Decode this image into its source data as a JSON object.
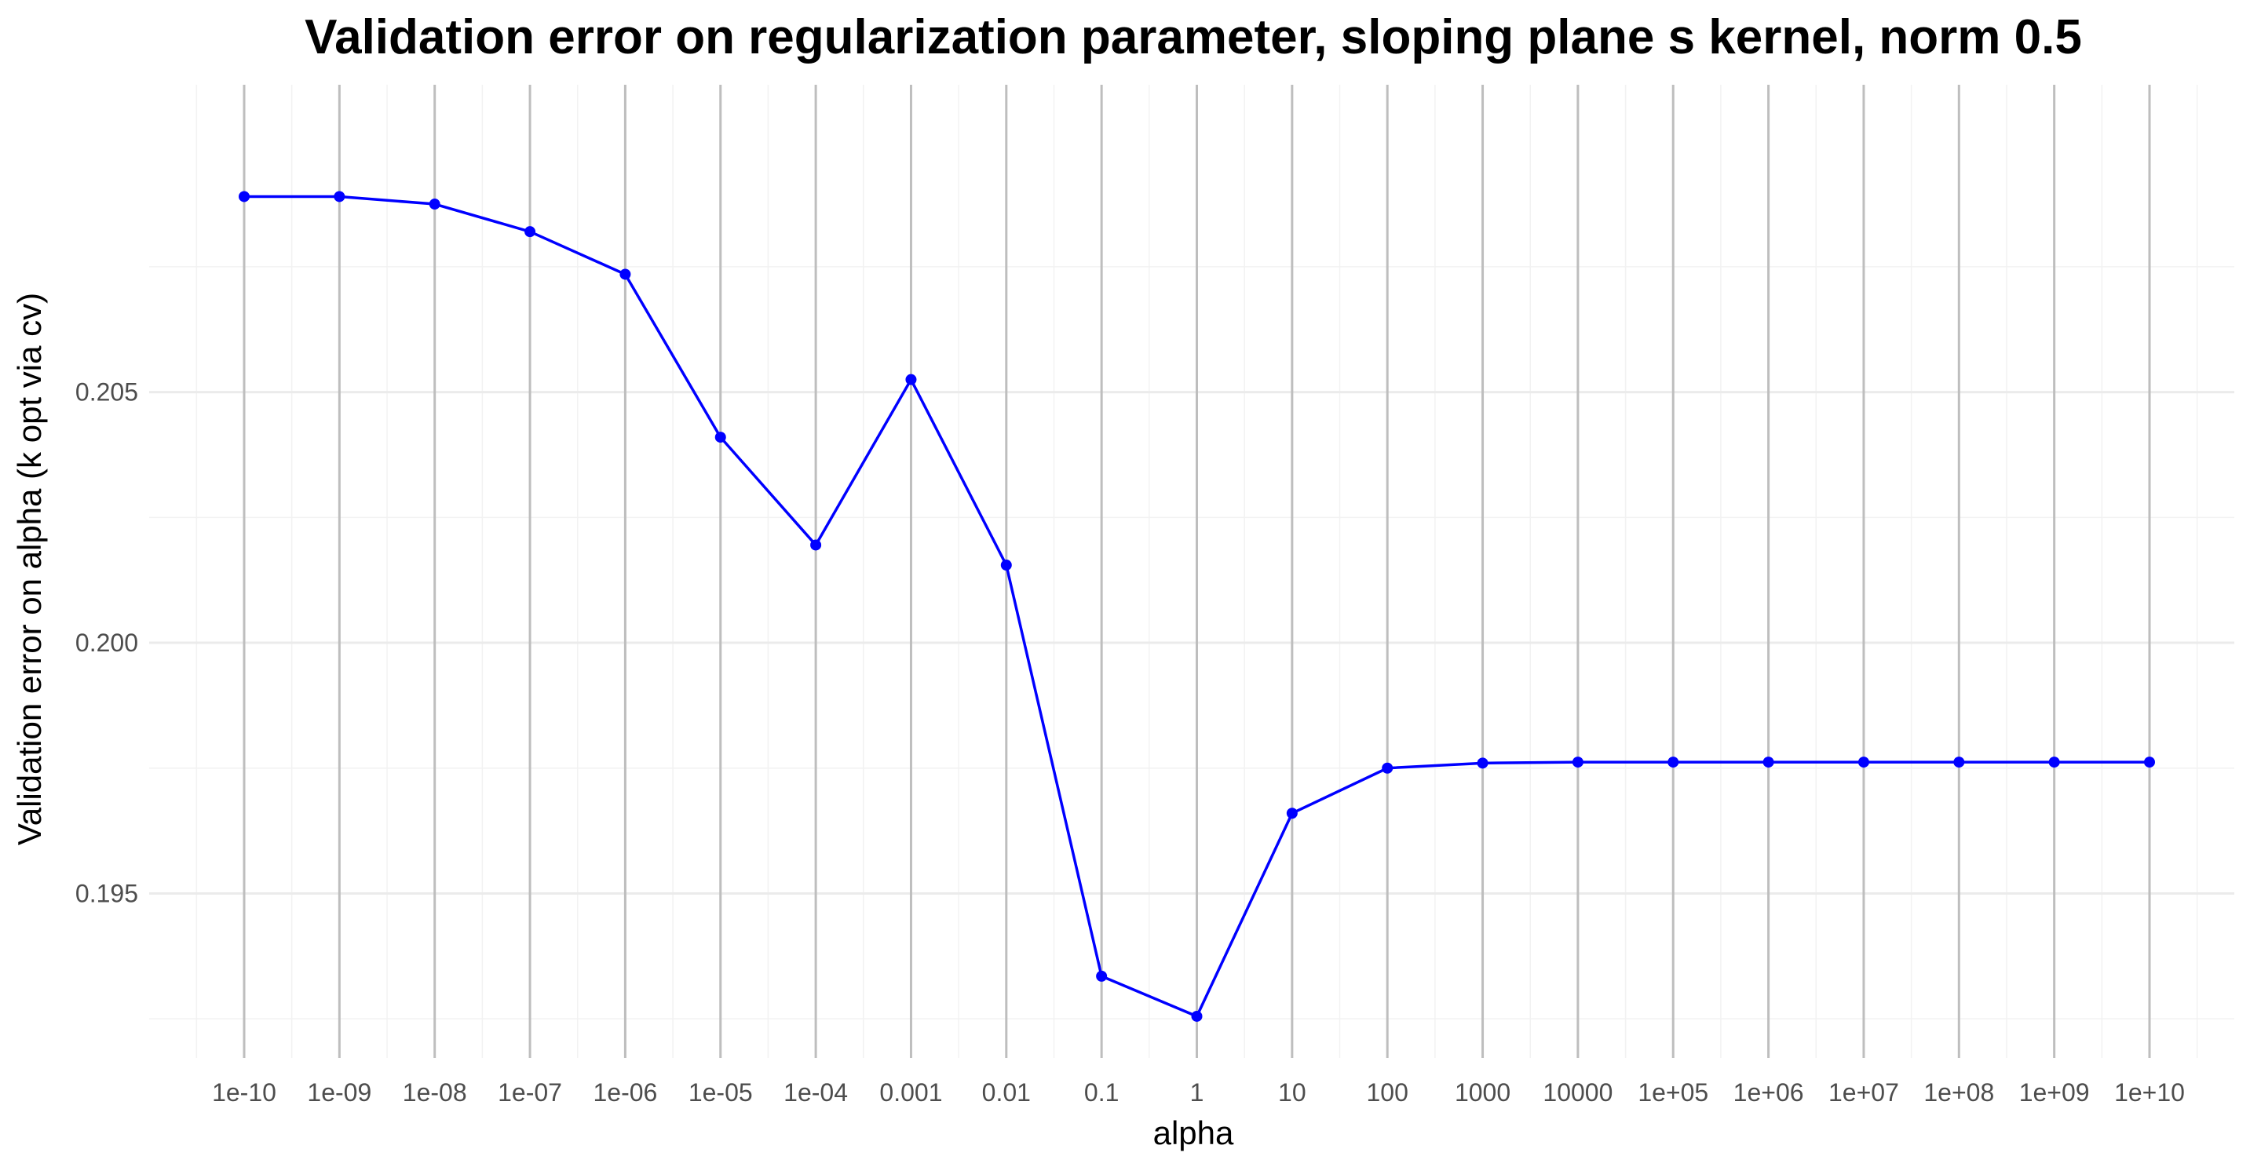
{
  "chart_data": {
    "type": "line",
    "title": "Validation error on regularization parameter, sloping plane s kernel, norm 0.5",
    "xlabel": "alpha",
    "ylabel": "Validation error on alpha (k opt via cv)",
    "categories": [
      "1e-10",
      "1e-09",
      "1e-08",
      "1e-07",
      "1e-06",
      "1e-05",
      "1e-04",
      "0.001",
      "0.01",
      "0.1",
      "1",
      "10",
      "100",
      "1000",
      "10000",
      "1e+05",
      "1e+06",
      "1e+07",
      "1e+08",
      "1e+09",
      "1e+10"
    ],
    "series": [
      {
        "values": [
          0.2089,
          0.2089,
          0.20875,
          0.2082,
          0.20735,
          0.2041,
          0.20195,
          0.20525,
          0.20155,
          0.19335,
          0.19255,
          0.1966,
          0.1975,
          0.1976,
          0.19762,
          0.19762,
          0.19762,
          0.19762,
          0.19762,
          0.19762,
          0.19762
        ],
        "color": "#0000ff"
      }
    ],
    "yticks": [
      "0.195",
      "0.200",
      "0.205"
    ],
    "ytick_values": [
      0.195,
      0.2,
      0.205
    ],
    "ylim": [
      0.19172,
      0.21113
    ],
    "grid": true,
    "legend": "none"
  }
}
